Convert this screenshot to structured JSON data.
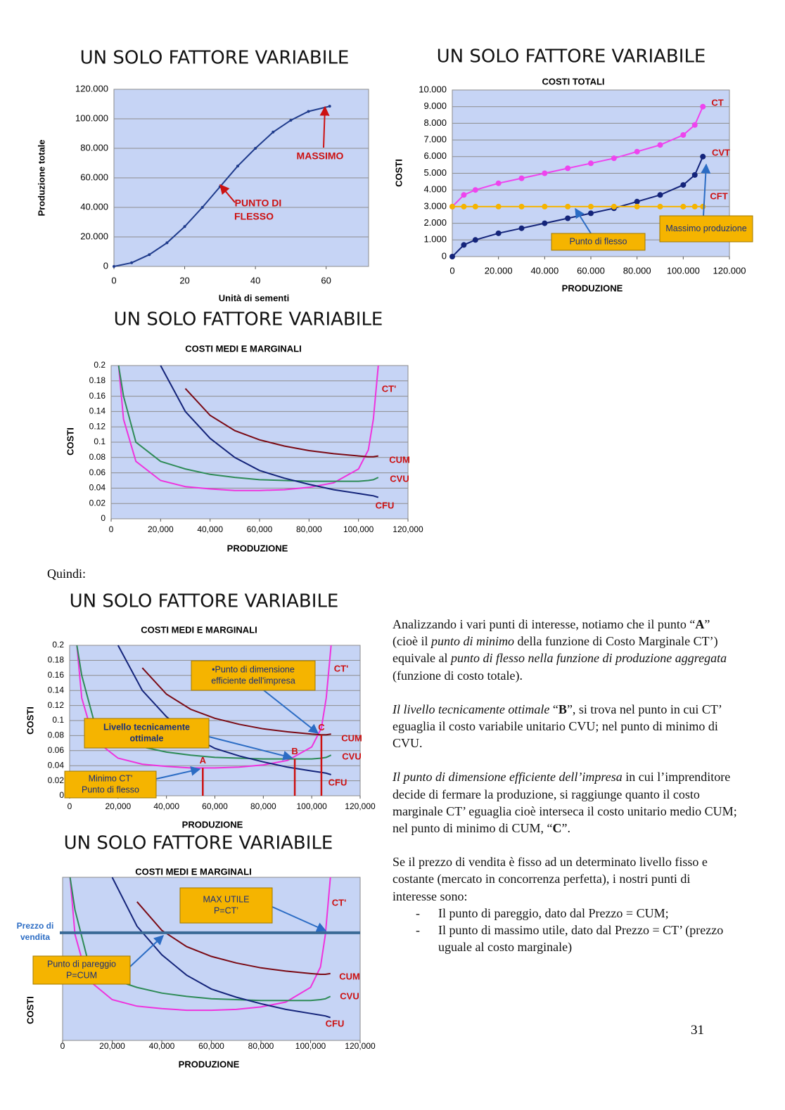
{
  "chart_data": [
    {
      "type": "line",
      "title": "UN SOLO FATTORE VARIABILE",
      "x_label": "Unità di sementi",
      "y_label": "Produzione totale",
      "x": [
        0,
        5,
        10,
        15,
        20,
        25,
        30,
        35,
        40,
        45,
        50,
        55,
        61
      ],
      "values": [
        0,
        2500,
        8000,
        16000,
        27000,
        40000,
        54000,
        68000,
        80000,
        91000,
        99000,
        105000,
        108500
      ],
      "color": "#1f3b8c",
      "marker": true,
      "background": "#c6d4f5",
      "grid": true,
      "xlim": [
        0,
        72
      ],
      "ylim": [
        0,
        120000
      ],
      "xticks": [
        0,
        20,
        40,
        60
      ],
      "yticks": [
        0,
        {
          "value": 20000,
          "label": "20.000"
        },
        {
          "value": 40000,
          "label": "40.000"
        },
        {
          "value": 60000,
          "label": "60.000"
        },
        {
          "value": 80000,
          "label": "80.000"
        },
        {
          "value": 100000,
          "label": "100.000"
        },
        {
          "value": 120000,
          "label": "120.000"
        }
      ],
      "annotations": [
        {
          "lines": [
            "MASSIMO"
          ]
        },
        {
          "lines": [
            "PUNTO DI",
            "FLESSO"
          ]
        }
      ]
    },
    {
      "type": "line",
      "title": "UN SOLO FATTORE VARIABILE",
      "subtitle": "COSTI TOTALI",
      "x_label": "PRODUZIONE",
      "y_label": "COSTI",
      "x": [
        0,
        5000,
        10000,
        20000,
        30000,
        40000,
        50000,
        60000,
        70000,
        80000,
        90000,
        100000,
        105000,
        108500
      ],
      "series": [
        {
          "name": "CT",
          "color": "#ee44ee",
          "values": [
            3000,
            3700,
            4000,
            4400,
            4700,
            5000,
            5300,
            5600,
            5900,
            6300,
            6700,
            7300,
            7900,
            9000
          ]
        },
        {
          "name": "CVT",
          "color": "#14247a",
          "values": [
            0,
            700,
            1000,
            1400,
            1700,
            2000,
            2300,
            2600,
            2900,
            3300,
            3700,
            4300,
            4900,
            6000
          ]
        },
        {
          "name": "CFT",
          "color": "#f5b400",
          "values": [
            3000,
            3000,
            3000,
            3000,
            3000,
            3000,
            3000,
            3000,
            3000,
            3000,
            3000,
            3000,
            3000,
            3000
          ]
        }
      ],
      "marker": true,
      "background": "#c6d4f5",
      "grid": true,
      "xlim": [
        0,
        120000
      ],
      "ylim": [
        0,
        10000
      ],
      "xticks": [
        0,
        {
          "value": 20000,
          "label": "20.000"
        },
        {
          "value": 40000,
          "label": "40.000"
        },
        {
          "value": 60000,
          "label": "60.000"
        },
        {
          "value": 80000,
          "label": "80.000"
        },
        {
          "value": 100000,
          "label": "100.000"
        },
        {
          "value": 120000,
          "label": "120.000"
        }
      ],
      "yticks": [
        0,
        {
          "value": 1000,
          "label": "1.000"
        },
        {
          "value": 2000,
          "label": "2.000"
        },
        {
          "value": 3000,
          "label": "3.000"
        },
        {
          "value": 4000,
          "label": "4.000"
        },
        {
          "value": 5000,
          "label": "5.000"
        },
        {
          "value": 6000,
          "label": "6.000"
        },
        {
          "value": 7000,
          "label": "7.000"
        },
        {
          "value": 8000,
          "label": "8.000"
        },
        {
          "value": 9000,
          "label": "9.000"
        },
        {
          "value": 10000,
          "label": "10.000"
        }
      ],
      "annotations": [
        {
          "lines": [
            "Punto di flesso"
          ]
        },
        {
          "lines": [
            "Massimo produzione"
          ]
        }
      ]
    },
    {
      "type": "line",
      "title": "UN SOLO FATTORE VARIABILE",
      "subtitle": "COSTI MEDI E MARGINALI",
      "x_label": "PRODUZIONE",
      "y_label": "COSTI",
      "x": [
        3000,
        5000,
        10000,
        20000,
        30000,
        40000,
        50000,
        60000,
        70000,
        80000,
        90000,
        100000,
        104000,
        106000,
        108000
      ],
      "series": [
        {
          "name": "CT'",
          "color": "#ee33dd",
          "values": [
            0.2,
            0.13,
            0.075,
            0.05,
            0.042,
            0.039,
            0.037,
            0.037,
            0.038,
            0.041,
            0.047,
            0.065,
            0.09,
            0.13,
            0.2
          ]
        },
        {
          "name": "CUM",
          "color": "#7a0a14",
          "values": [
            null,
            null,
            null,
            null,
            0.17,
            0.135,
            0.115,
            0.103,
            0.095,
            0.089,
            0.085,
            0.082,
            0.081,
            0.081,
            0.082
          ]
        },
        {
          "name": "CVU",
          "color": "#2e8b57",
          "values": [
            0.2,
            0.16,
            0.1,
            0.075,
            0.065,
            0.058,
            0.054,
            0.051,
            0.05,
            0.049,
            0.049,
            0.049,
            0.05,
            0.051,
            0.054
          ]
        },
        {
          "name": "CFU",
          "color": "#14247a",
          "values": [
            null,
            null,
            null,
            0.2,
            0.14,
            0.105,
            0.08,
            0.063,
            0.053,
            0.045,
            0.038,
            0.033,
            0.031,
            0.03,
            0.028
          ]
        }
      ],
      "background": "#c6d4f5",
      "grid": true,
      "xlim": [
        0,
        120000
      ],
      "ylim": [
        0,
        0.2
      ],
      "xticks": [
        0,
        {
          "value": 20000,
          "label": "20,000"
        },
        {
          "value": 40000,
          "label": "40,000"
        },
        {
          "value": 60000,
          "label": "60,000"
        },
        {
          "value": 80000,
          "label": "80,000"
        },
        {
          "value": 100000,
          "label": "100,000"
        },
        {
          "value": 120000,
          "label": "120,000"
        }
      ],
      "yticks": [
        0,
        0.02,
        0.04,
        0.06,
        0.08,
        0.1,
        0.12,
        0.14,
        0.16,
        0.18,
        0.2
      ]
    },
    {
      "type": "line",
      "title": "UN SOLO FATTORE VARIABILE",
      "subtitle": "COSTI MEDI E MARGINALI",
      "x_label": "PRODUZIONE",
      "y_label": "COSTI",
      "x": [
        3000,
        5000,
        10000,
        20000,
        30000,
        40000,
        50000,
        60000,
        70000,
        80000,
        90000,
        100000,
        104000,
        106000,
        108000
      ],
      "series": [
        {
          "name": "CT'",
          "color": "#ee33dd",
          "values": [
            0.2,
            0.13,
            0.075,
            0.05,
            0.042,
            0.039,
            0.037,
            0.037,
            0.038,
            0.041,
            0.047,
            0.065,
            0.09,
            0.13,
            0.2
          ]
        },
        {
          "name": "CUM",
          "color": "#7a0a14",
          "values": [
            null,
            null,
            null,
            null,
            0.17,
            0.135,
            0.115,
            0.103,
            0.095,
            0.089,
            0.085,
            0.082,
            0.081,
            0.081,
            0.082
          ]
        },
        {
          "name": "CVU",
          "color": "#2e8b57",
          "values": [
            0.2,
            0.16,
            0.1,
            0.075,
            0.065,
            0.058,
            0.054,
            0.051,
            0.05,
            0.049,
            0.049,
            0.049,
            0.05,
            0.051,
            0.054
          ]
        },
        {
          "name": "CFU",
          "color": "#14247a",
          "values": [
            null,
            null,
            null,
            0.2,
            0.14,
            0.105,
            0.08,
            0.063,
            0.053,
            0.045,
            0.038,
            0.033,
            0.031,
            0.03,
            0.028
          ]
        }
      ],
      "points": [
        {
          "label": "A",
          "x": 55000,
          "y": 0.037
        },
        {
          "label": "B",
          "x": 93000,
          "y": 0.049
        },
        {
          "label": "C",
          "x": 104000,
          "y": 0.081
        }
      ],
      "background": "#c6d4f5",
      "grid": true,
      "xlim": [
        0,
        120000
      ],
      "ylim": [
        0,
        0.2
      ],
      "xticks": [
        0,
        {
          "value": 20000,
          "label": "20,000"
        },
        {
          "value": 40000,
          "label": "40,000"
        },
        {
          "value": 60000,
          "label": "60,000"
        },
        {
          "value": 80000,
          "label": "80,000"
        },
        {
          "value": 100000,
          "label": "100,000"
        },
        {
          "value": 120000,
          "label": "120,000"
        }
      ],
      "yticks": [
        0,
        0.02,
        0.04,
        0.06,
        0.08,
        0.1,
        0.12,
        0.14,
        0.16,
        0.18,
        0.2
      ],
      "annotations": [
        {
          "lines": [
            "•Punto di dimensione",
            "efficiente dell'impresa"
          ]
        },
        {
          "lines": [
            "Livello tecnicamente",
            "ottimale"
          ]
        },
        {
          "lines": [
            "Minimo CT'",
            "Punto di flesso"
          ]
        }
      ]
    },
    {
      "type": "line",
      "title": "UN SOLO FATTORE VARIABILE",
      "subtitle": "COSTI MEDI E MARGINALI",
      "x_label": "PRODUZIONE",
      "y_label": "COSTI",
      "x": [
        3000,
        5000,
        10000,
        20000,
        30000,
        40000,
        50000,
        60000,
        70000,
        80000,
        90000,
        100000,
        104000,
        106000,
        108000
      ],
      "series": [
        {
          "name": "CT'",
          "color": "#ee33dd",
          "values": [
            0.2,
            0.13,
            0.075,
            0.05,
            0.042,
            0.039,
            0.037,
            0.037,
            0.038,
            0.041,
            0.047,
            0.065,
            0.09,
            0.13,
            0.2
          ]
        },
        {
          "name": "CUM",
          "color": "#7a0a14",
          "values": [
            null,
            null,
            null,
            null,
            0.17,
            0.135,
            0.115,
            0.103,
            0.095,
            0.089,
            0.085,
            0.082,
            0.081,
            0.081,
            0.082
          ]
        },
        {
          "name": "CVU",
          "color": "#2e8b57",
          "values": [
            0.2,
            0.16,
            0.1,
            0.075,
            0.065,
            0.058,
            0.054,
            0.051,
            0.05,
            0.049,
            0.049,
            0.049,
            0.05,
            0.051,
            0.054
          ]
        },
        {
          "name": "CFU",
          "color": "#14247a",
          "values": [
            null,
            null,
            null,
            0.2,
            0.14,
            0.105,
            0.08,
            0.063,
            0.053,
            0.045,
            0.038,
            0.033,
            0.031,
            0.03,
            0.028
          ]
        }
      ],
      "price": 0.132,
      "price_label": [
        "Prezzo di",
        "vendita"
      ],
      "background": "#c6d4f5",
      "xlim": [
        0,
        120000
      ],
      "ylim": [
        0,
        0.2
      ],
      "xticks": [
        0,
        {
          "value": 20000,
          "label": "20,000"
        },
        {
          "value": 40000,
          "label": "40,000"
        },
        {
          "value": 60000,
          "label": "60,000"
        },
        {
          "value": 80000,
          "label": "80,000"
        },
        {
          "value": 100000,
          "label": "100,000"
        },
        {
          "value": 120000,
          "label": "120,000"
        }
      ],
      "annotations": [
        {
          "lines": [
            "MAX UTILE",
            "P=CT’"
          ]
        },
        {
          "lines": [
            "Punto di pareggio",
            "P=CUM"
          ]
        }
      ]
    }
  ],
  "document": {
    "intro": "Quindi:",
    "paragraphs": [
      [
        "Analizzando i vari punti di interesse, notiamo che il punto “",
        "A",
        "” (cioè il ",
        "punto di minimo",
        " della funzione di Costo Marginale CT’) equivale al ",
        "punto di flesso nella funzione di produzione aggregata",
        " (funzione di costo totale)."
      ],
      [
        "Il livello tecnicamente ottimale",
        " “",
        "B",
        "”, si trova nel punto in cui CT’ eguaglia il costo variabile unitario CVU; nel punto di minimo di CVU."
      ],
      [
        "Il punto di dimensione efficiente dell’impresa",
        " in cui l’imprenditore decide di fermare la produzione, si raggiunge quanto il costo marginale CT’ eguaglia cioè interseca il costo unitario medio CUM; nel punto di minimo di CUM, “",
        "C",
        "”."
      ],
      [
        "Se il prezzo di vendita è fisso ad un determinato livello fisso e costante (mercato in concorrenza perfetta), i nostri punti di interesse sono:"
      ]
    ],
    "list": [
      "Il punto di pareggio, dato dal Prezzo = CUM;",
      "Il punto di massimo utile, dato dal Prezzo = CT’ (prezzo uguale al costo marginale)"
    ],
    "page_number": "31"
  }
}
